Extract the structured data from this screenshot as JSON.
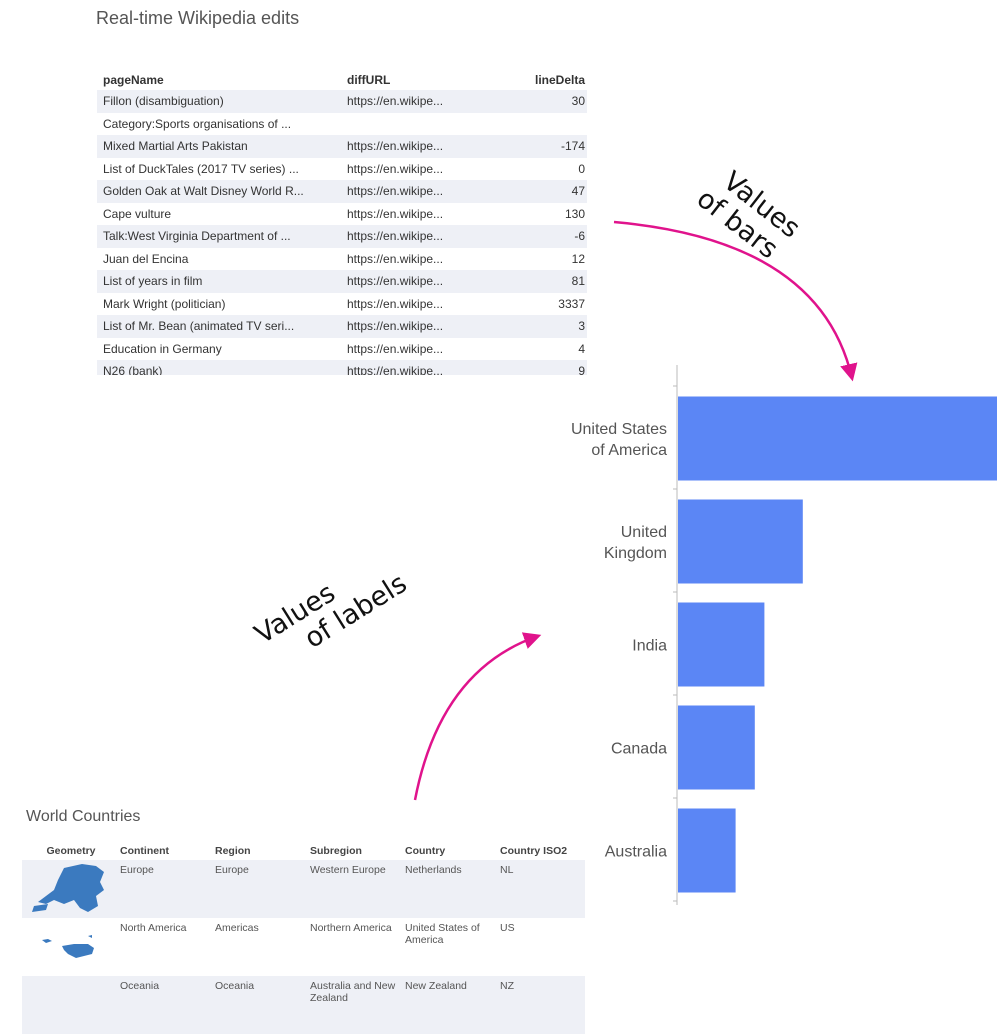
{
  "wiki": {
    "title": "Real-time Wikipedia edits",
    "columns": [
      "pageName",
      "diffURL",
      "lineDelta"
    ],
    "rows": [
      {
        "page": "Fillon (disambiguation)",
        "diff": "https://en.wikipe...",
        "delta": "30"
      },
      {
        "page": "Category:Sports organisations of ...",
        "diff": "",
        "delta": ""
      },
      {
        "page": "Mixed Martial Arts Pakistan",
        "diff": "https://en.wikipe...",
        "delta": "-174"
      },
      {
        "page": "List of DuckTales (2017 TV series) ...",
        "diff": "https://en.wikipe...",
        "delta": "0"
      },
      {
        "page": "Golden Oak at Walt Disney World R...",
        "diff": "https://en.wikipe...",
        "delta": "47"
      },
      {
        "page": "Cape vulture",
        "diff": "https://en.wikipe...",
        "delta": "130"
      },
      {
        "page": "Talk:West Virginia Department of ...",
        "diff": "https://en.wikipe...",
        "delta": "-6"
      },
      {
        "page": "Juan del Encina",
        "diff": "https://en.wikipe...",
        "delta": "12"
      },
      {
        "page": "List of years in film",
        "diff": "https://en.wikipe...",
        "delta": "81"
      },
      {
        "page": "Mark Wright (politician)",
        "diff": "https://en.wikipe...",
        "delta": "3337"
      },
      {
        "page": "List of Mr. Bean (animated TV seri...",
        "diff": "https://en.wikipe...",
        "delta": "3"
      },
      {
        "page": "Education in Germany",
        "diff": "https://en.wikipe...",
        "delta": "4"
      },
      {
        "page": "N26 (bank)",
        "diff": "https://en.wikipe...",
        "delta": "9"
      }
    ]
  },
  "annotations": {
    "bars": [
      "Values",
      "of bars"
    ],
    "labels": [
      "Values",
      "of labels"
    ],
    "arrow_color": "#e0138c"
  },
  "chart_data": {
    "type": "bar",
    "orientation": "horizontal",
    "categories": [
      "United States of America",
      "United Kingdom",
      "India",
      "Canada",
      "Australia"
    ],
    "category_lines": [
      [
        "United States",
        "of America"
      ],
      [
        "United",
        "Kingdom"
      ],
      [
        "India"
      ],
      [
        "Canada"
      ],
      [
        "Australia"
      ]
    ],
    "values": [
      100,
      39,
      27,
      24,
      18
    ],
    "bar_color": "#5b86f5"
  },
  "world": {
    "title": "World Countries",
    "columns": [
      "Geometry",
      "Continent",
      "Region",
      "Subregion",
      "Country",
      "Country ISO2"
    ],
    "rows": [
      {
        "continent": "Europe",
        "region": "Europe",
        "subregion": "Western Europe",
        "country": "Netherlands",
        "iso2": "NL"
      },
      {
        "continent": "North America",
        "region": "Americas",
        "subregion": "Northern America",
        "country": "United States of America",
        "iso2": "US"
      },
      {
        "continent": "Oceania",
        "region": "Oceania",
        "subregion": "Australia and New Zealand",
        "country": "New Zealand",
        "iso2": "NZ"
      }
    ],
    "map_color": "#3b7abf"
  }
}
